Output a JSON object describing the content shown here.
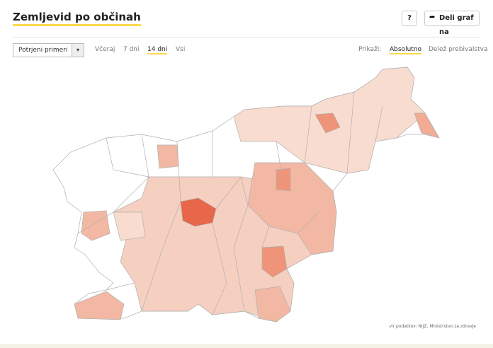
{
  "header": {
    "title": "Zemljevid po občinah",
    "help": "?",
    "share": "Deli graf na"
  },
  "controls": {
    "select": "Potrjeni primeri",
    "periods": [
      "Včeraj",
      "7 dni",
      "14 dni",
      "Vsi"
    ],
    "show_label": "Prikaži:",
    "modes": [
      "Absolutno",
      "Delež prebivalstva"
    ]
  },
  "source": "vir podatkov: NIJZ, Ministrstvo za zdravje"
}
